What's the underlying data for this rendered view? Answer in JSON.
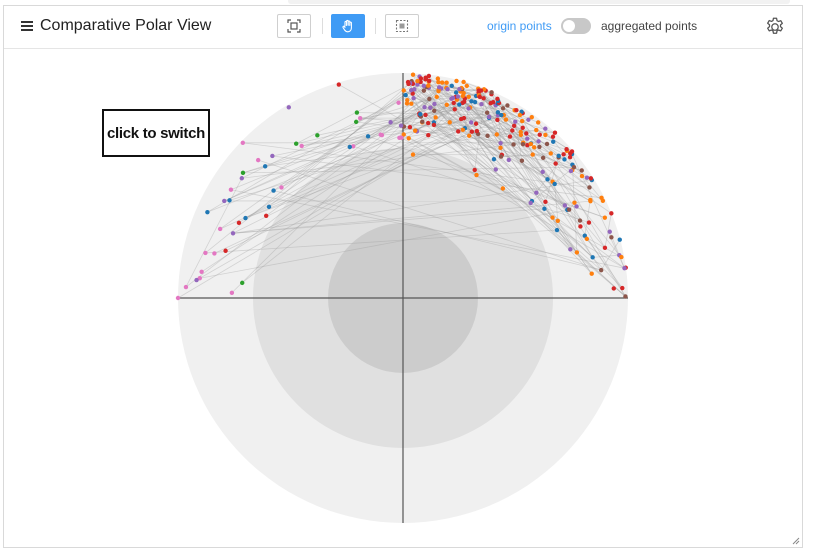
{
  "header": {
    "title": "Comparative Polar View",
    "origin_label": "origin points",
    "aggregated_label": "aggregated points",
    "aggregated_toggle_on": false,
    "tools": [
      {
        "name": "fit-view",
        "icon": "fit-view-icon",
        "active": false
      },
      {
        "name": "pan",
        "icon": "hand-icon",
        "active": true
      },
      {
        "name": "select",
        "icon": "lasso-select-icon",
        "active": false
      }
    ]
  },
  "overlay": {
    "switch_label": "click to switch"
  },
  "colors": {
    "accent": "#3f9bf5",
    "rings": [
      "#f0f0f0",
      "#e0e0e0",
      "#cccccc"
    ],
    "series": [
      "#1f77b4",
      "#ff7f0e",
      "#2ca02c",
      "#d62728",
      "#9467bd",
      "#8c564b",
      "#e377c2"
    ]
  },
  "chart_data": {
    "type": "scatter",
    "coordinate_system": "polar",
    "rings": 3,
    "axes_crosshair": true,
    "links_shown": true
  }
}
